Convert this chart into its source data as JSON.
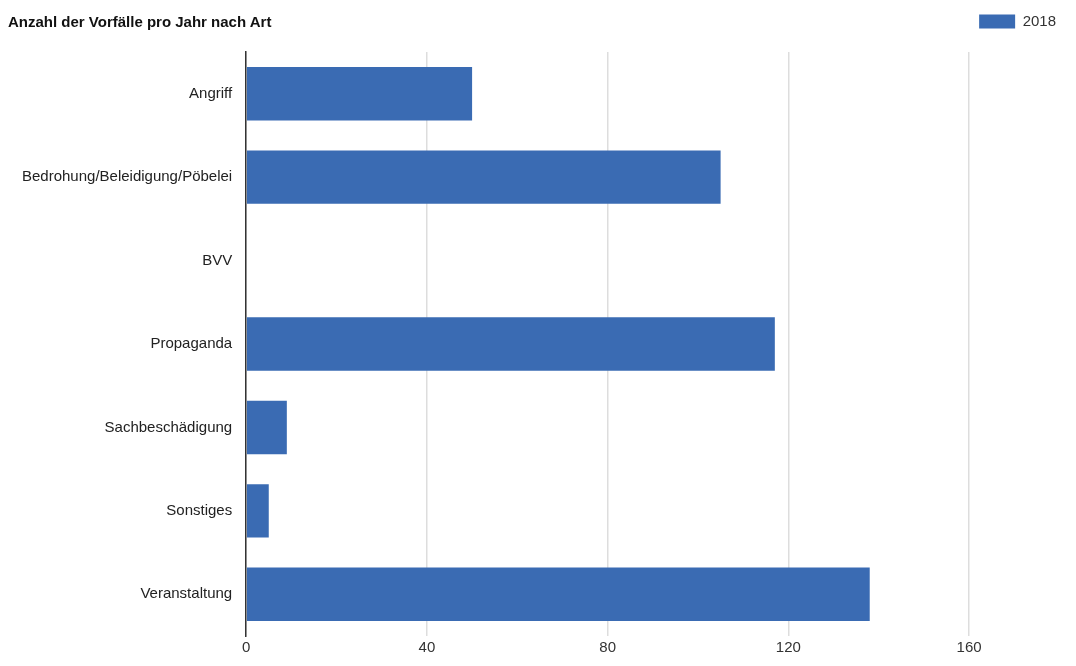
{
  "chart_data": {
    "type": "bar",
    "orientation": "horizontal",
    "title": "Anzahl der Vorfälle pro Jahr nach Art",
    "categories": [
      "Angriff",
      "Bedrohung/Beleidigung/Pöbelei",
      "BVV",
      "Propaganda",
      "Sachbeschädigung",
      "Sonstiges",
      "Veranstaltung"
    ],
    "series": [
      {
        "name": "2018",
        "color": "#3a6bb3",
        "values": [
          50,
          105,
          0,
          117,
          9,
          5,
          138
        ]
      }
    ],
    "xlim": [
      0,
      160
    ],
    "xticks": [
      0,
      40,
      80,
      120,
      160
    ],
    "grid": "x",
    "legend": "top right"
  }
}
